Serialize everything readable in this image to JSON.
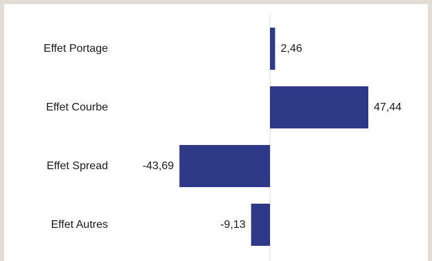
{
  "chart_data": {
    "type": "bar",
    "orientation": "horizontal",
    "categories": [
      "Effet Portage",
      "Effet Courbe",
      "Effet Spread",
      "Effet Autres"
    ],
    "values": [
      2.46,
      47.44,
      -43.69,
      -9.13
    ],
    "value_labels": [
      "2,46",
      "47,44",
      "-43,69",
      "-9,13"
    ],
    "title": "",
    "xlabel": "",
    "ylabel": "",
    "grid": false,
    "legend": "none",
    "bar_color": "#2e3a87",
    "axis_color": "#d9d9d9"
  }
}
